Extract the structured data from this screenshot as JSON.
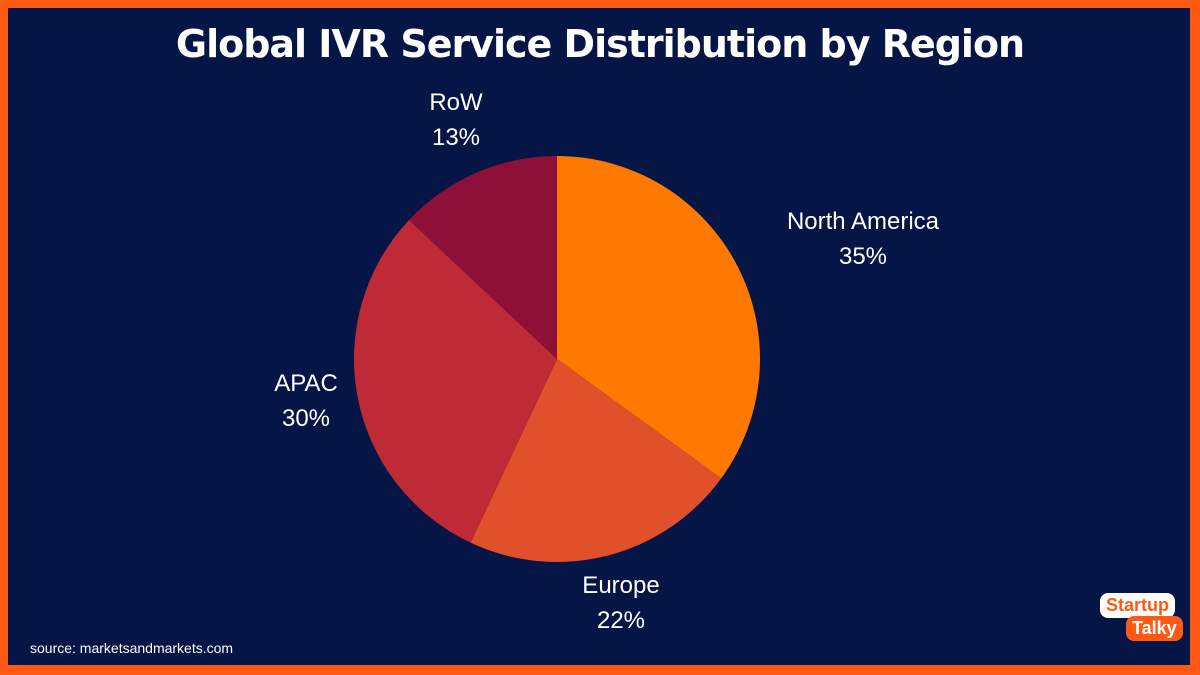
{
  "chart_data": {
    "type": "pie",
    "title": "Global IVR Service Distribution by Region",
    "slices": [
      {
        "label": "North America",
        "value": 35,
        "display": "35%",
        "color": "#FF7800"
      },
      {
        "label": "Europe",
        "value": 22,
        "display": "22%",
        "color": "#E0502A"
      },
      {
        "label": "APAC",
        "value": 30,
        "display": "30%",
        "color": "#BE2A36"
      },
      {
        "label": "RoW",
        "value": 13,
        "display": "13%",
        "color": "#8E1038"
      }
    ],
    "start_angle": "12 o'clock",
    "direction": "clockwise"
  },
  "source": "source: marketsandmarkets.com",
  "logo": {
    "line1": "Startup",
    "line2": "Talky"
  }
}
